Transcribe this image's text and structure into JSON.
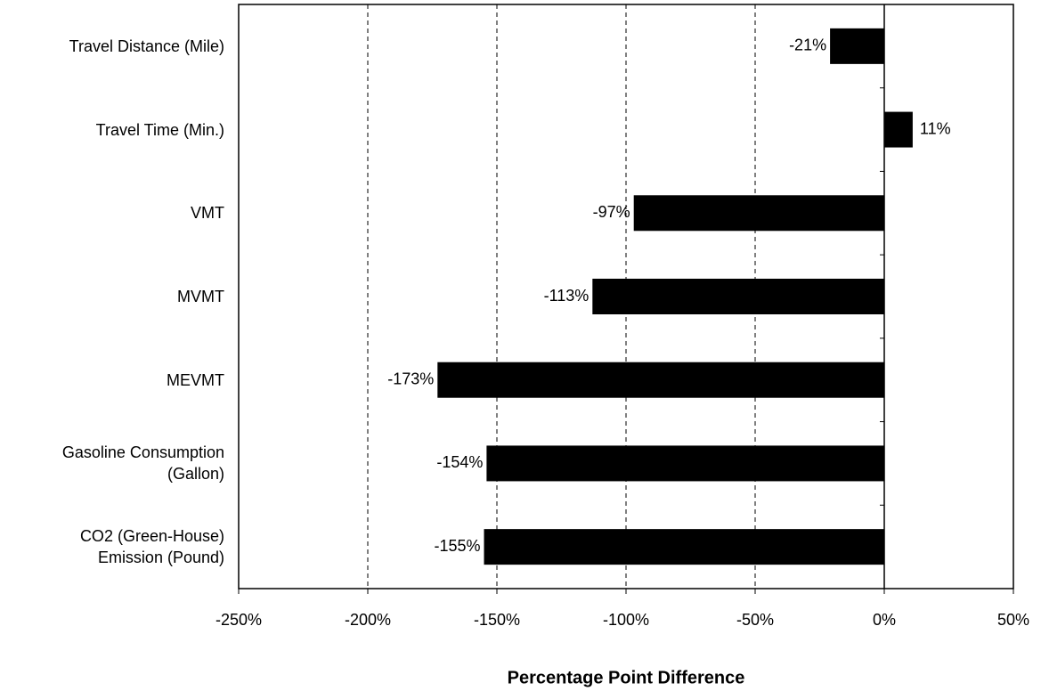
{
  "chart_data": {
    "type": "barh",
    "x_label": "Percentage Point Difference",
    "categories": [
      "Travel Distance (Mile)",
      "Travel Time (Min.)",
      "VMT",
      "MVMT",
      "MEVMT",
      "Gasoline Consumption\n(Gallon)",
      "CO2 (Green-House)\nEmission (Pound)"
    ],
    "values": [
      -21,
      11,
      -97,
      -113,
      -173,
      -154,
      -155
    ],
    "value_labels": [
      "-21%",
      "11%",
      "-97%",
      "-113%",
      "-173%",
      "-154%",
      "-155%"
    ],
    "color": "#000000",
    "xlim": [
      -250,
      50
    ],
    "xticks": [
      {
        "value": -250,
        "label": "-250%"
      },
      {
        "value": -200,
        "label": "-200%"
      },
      {
        "value": -150,
        "label": "-150%"
      },
      {
        "value": -100,
        "label": "-100%"
      },
      {
        "value": -50,
        "label": "-50%"
      },
      {
        "value": 0,
        "label": "0%"
      },
      {
        "value": 50,
        "label": "50%"
      }
    ],
    "grid": true
  }
}
